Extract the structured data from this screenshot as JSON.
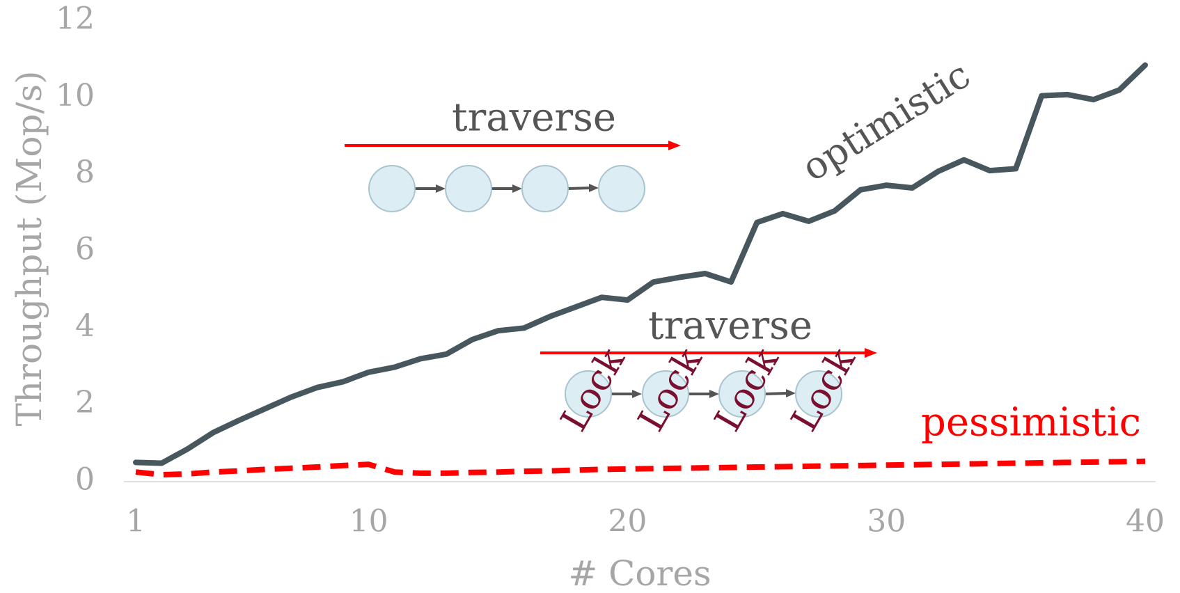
{
  "chart_data": {
    "type": "line",
    "x_label": "# Cores",
    "y_label": "Throughput (Mop/s)",
    "x": [
      1,
      2,
      3,
      4,
      5,
      6,
      7,
      8,
      9,
      10,
      11,
      12,
      13,
      14,
      15,
      16,
      17,
      18,
      19,
      20,
      21,
      22,
      23,
      24,
      25,
      26,
      27,
      28,
      29,
      30,
      31,
      32,
      33,
      34,
      35,
      36,
      37,
      38,
      39,
      40
    ],
    "series": [
      {
        "name": "optimistic",
        "color": "#47575d",
        "dash": false,
        "values": [
          0.5,
          0.48,
          0.85,
          1.28,
          1.6,
          1.9,
          2.2,
          2.45,
          2.6,
          2.85,
          2.98,
          3.2,
          3.32,
          3.7,
          3.93,
          4.0,
          4.3,
          4.55,
          4.8,
          4.73,
          5.2,
          5.32,
          5.42,
          5.2,
          6.75,
          6.98,
          6.78,
          7.05,
          7.6,
          7.72,
          7.65,
          8.08,
          8.38,
          8.1,
          8.15,
          10.05,
          10.08,
          9.95,
          10.2,
          10.85
        ]
      },
      {
        "name": "pessimistic",
        "color": "#ff0000",
        "dash": true,
        "values": [
          0.25,
          0.18,
          0.2,
          0.25,
          0.28,
          0.32,
          0.35,
          0.38,
          0.42,
          0.45,
          0.25,
          0.22,
          0.22,
          0.24,
          0.25,
          0.27,
          0.28,
          0.3,
          0.32,
          0.33,
          0.34,
          0.35,
          0.36,
          0.37,
          0.38,
          0.39,
          0.4,
          0.41,
          0.42,
          0.43,
          0.44,
          0.45,
          0.46,
          0.47,
          0.48,
          0.49,
          0.5,
          0.51,
          0.52,
          0.53
        ]
      }
    ],
    "xlim": [
      1,
      40
    ],
    "xticks": [
      1,
      10,
      20,
      30,
      40
    ],
    "ylim": [
      0,
      12
    ],
    "yticks": [
      0,
      2,
      4,
      6,
      8,
      10,
      12
    ],
    "grid": false,
    "annotations": [
      "traverse",
      "traverse",
      "Lock",
      "Lock",
      "Lock",
      "Lock"
    ]
  }
}
